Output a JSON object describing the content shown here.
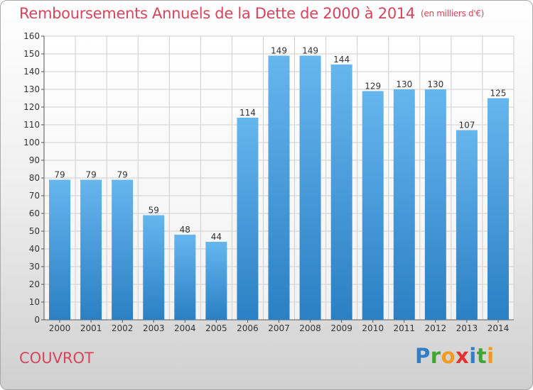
{
  "chart_data": {
    "type": "bar",
    "title": "Remboursements Annuels de la Dette de 2000 à 2014",
    "unit_label": "(en milliers d'€)",
    "categories": [
      "2000",
      "2001",
      "2002",
      "2003",
      "2004",
      "2005",
      "2006",
      "2007",
      "2008",
      "2009",
      "2010",
      "2011",
      "2012",
      "2013",
      "2014"
    ],
    "values": [
      79,
      79,
      79,
      59,
      48,
      44,
      114,
      149,
      149,
      144,
      129,
      130,
      130,
      107,
      125
    ],
    "ylim": [
      0,
      160
    ],
    "yticks": [
      0,
      10,
      20,
      30,
      40,
      50,
      60,
      70,
      80,
      90,
      100,
      110,
      120,
      130,
      140,
      150,
      160
    ],
    "grid": true,
    "xlabel": "",
    "ylabel": ""
  },
  "town": "COUVROT",
  "logo": {
    "letters": [
      {
        "char": "P",
        "color": "#2f7fc8"
      },
      {
        "char": "r",
        "color": "#3fa535"
      },
      {
        "char": "o",
        "color": "#f39a1e"
      },
      {
        "char": "x",
        "color": "#e2322f"
      },
      {
        "char": "i",
        "color": "#2f7fc8"
      },
      {
        "char": "t",
        "color": "#3fa535"
      },
      {
        "char": "i",
        "color": "#f39a1e"
      }
    ]
  },
  "colors": {
    "bar_light": "#66b6ee",
    "bar_dark": "#2a80c4",
    "grid": "#cfcfcf",
    "title": "#d6455b"
  }
}
